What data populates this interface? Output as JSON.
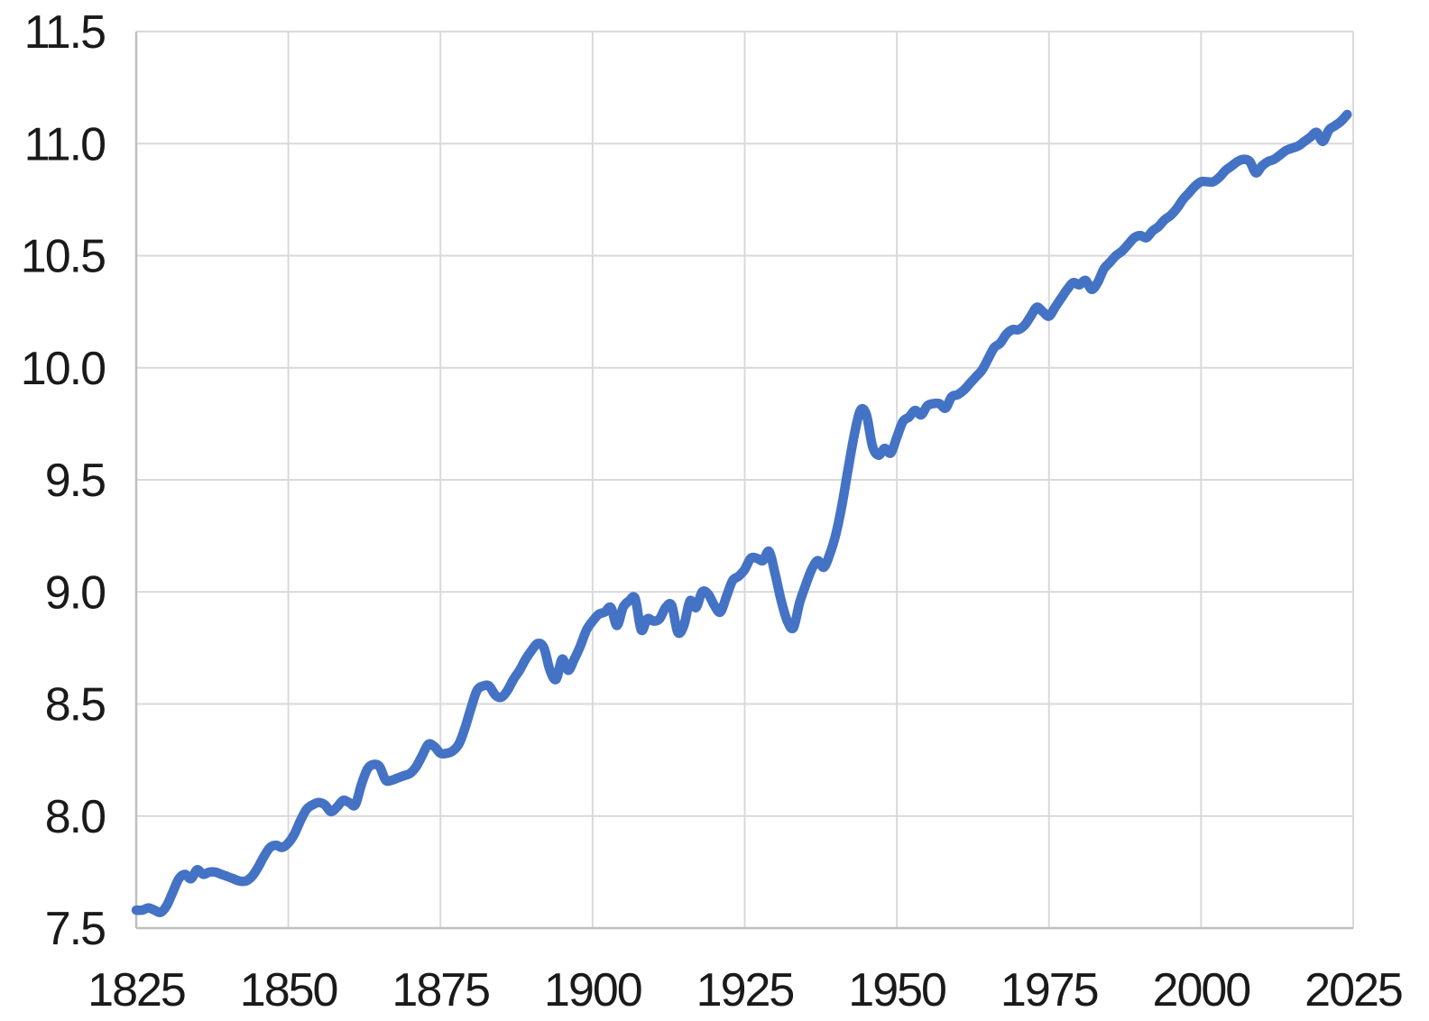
{
  "page": {
    "background_color": "#FFFFFF"
  },
  "style": {
    "grid_color": "#D9D9D9",
    "axis_color": "#BFBFBF",
    "tick_label_color": "#1A1A1A",
    "series_color": "#4472C4",
    "line_width": 10.5
  },
  "chart_data": {
    "type": "line",
    "title": "",
    "xlabel": "",
    "ylabel": "",
    "xlim": [
      1825,
      2025
    ],
    "ylim": [
      7.5,
      11.5
    ],
    "grid": true,
    "legend_position": "none",
    "x_ticks": [
      1825,
      1850,
      1875,
      1900,
      1925,
      1950,
      1975,
      2000,
      2025
    ],
    "x_tick_labels": [
      "1825",
      "1850",
      "1875",
      "1900",
      "1925",
      "1950",
      "1975",
      "2000",
      "2025"
    ],
    "y_ticks": [
      7.5,
      8.0,
      8.5,
      9.0,
      9.5,
      10.0,
      10.5,
      11.0,
      11.5
    ],
    "y_tick_labels": [
      "7.5",
      "8.0",
      "8.5",
      "9.0",
      "9.5",
      "10.0",
      "10.5",
      "11.0",
      "11.5"
    ],
    "series": [
      {
        "color": "#4472C4",
        "smooth": true,
        "x": [
          1825,
          1826,
          1827,
          1828,
          1829,
          1830,
          1831,
          1832,
          1833,
          1834,
          1835,
          1836,
          1837,
          1838,
          1839,
          1840,
          1841,
          1842,
          1843,
          1844,
          1845,
          1846,
          1847,
          1848,
          1849,
          1850,
          1851,
          1852,
          1853,
          1854,
          1855,
          1856,
          1857,
          1858,
          1859,
          1860,
          1861,
          1862,
          1863,
          1864,
          1865,
          1866,
          1867,
          1868,
          1869,
          1870,
          1871,
          1872,
          1873,
          1874,
          1875,
          1876,
          1877,
          1878,
          1879,
          1880,
          1881,
          1882,
          1883,
          1884,
          1885,
          1886,
          1887,
          1888,
          1889,
          1890,
          1891,
          1892,
          1893,
          1894,
          1895,
          1896,
          1897,
          1898,
          1899,
          1900,
          1901,
          1902,
          1903,
          1904,
          1905,
          1906,
          1907,
          1908,
          1909,
          1910,
          1911,
          1912,
          1913,
          1914,
          1915,
          1916,
          1917,
          1918,
          1919,
          1920,
          1921,
          1922,
          1923,
          1924,
          1925,
          1926,
          1927,
          1928,
          1929,
          1930,
          1931,
          1932,
          1933,
          1934,
          1935,
          1936,
          1937,
          1938,
          1939,
          1940,
          1941,
          1942,
          1943,
          1944,
          1945,
          1946,
          1947,
          1948,
          1949,
          1950,
          1951,
          1952,
          1953,
          1954,
          1955,
          1956,
          1957,
          1958,
          1959,
          1960,
          1961,
          1962,
          1963,
          1964,
          1965,
          1966,
          1967,
          1968,
          1969,
          1970,
          1971,
          1972,
          1973,
          1974,
          1975,
          1976,
          1977,
          1978,
          1979,
          1980,
          1981,
          1982,
          1983,
          1984,
          1985,
          1986,
          1987,
          1988,
          1989,
          1990,
          1991,
          1992,
          1993,
          1994,
          1995,
          1996,
          1997,
          1998,
          1999,
          2000,
          2001,
          2002,
          2003,
          2004,
          2005,
          2006,
          2007,
          2008,
          2009,
          2010,
          2011,
          2012,
          2013,
          2014,
          2015,
          2016,
          2017,
          2018,
          2019,
          2020,
          2021,
          2022,
          2023,
          2024
        ],
        "values": [
          7.58,
          7.58,
          7.59,
          7.58,
          7.57,
          7.6,
          7.66,
          7.72,
          7.74,
          7.72,
          7.76,
          7.74,
          7.75,
          7.75,
          7.74,
          7.73,
          7.72,
          7.71,
          7.71,
          7.73,
          7.77,
          7.82,
          7.86,
          7.87,
          7.86,
          7.88,
          7.92,
          7.98,
          8.03,
          8.05,
          8.06,
          8.05,
          8.02,
          8.04,
          8.07,
          8.06,
          8.05,
          8.14,
          8.21,
          8.23,
          8.22,
          8.16,
          8.16,
          8.17,
          8.18,
          8.19,
          8.22,
          8.27,
          8.32,
          8.31,
          8.28,
          8.28,
          8.29,
          8.32,
          8.39,
          8.48,
          8.56,
          8.58,
          8.58,
          8.54,
          8.53,
          8.56,
          8.61,
          8.65,
          8.7,
          8.74,
          8.77,
          8.75,
          8.65,
          8.61,
          8.7,
          8.65,
          8.7,
          8.76,
          8.83,
          8.87,
          8.9,
          8.91,
          8.93,
          8.85,
          8.93,
          8.96,
          8.97,
          8.83,
          8.88,
          8.87,
          8.88,
          8.93,
          8.94,
          8.82,
          8.85,
          8.96,
          8.93,
          9.0,
          8.99,
          8.94,
          8.91,
          8.98,
          9.05,
          9.07,
          9.1,
          9.15,
          9.15,
          9.14,
          9.18,
          9.08,
          8.96,
          8.87,
          8.84,
          8.95,
          9.03,
          9.1,
          9.14,
          9.11,
          9.17,
          9.26,
          9.39,
          9.55,
          9.7,
          9.81,
          9.79,
          9.65,
          9.61,
          9.64,
          9.62,
          9.69,
          9.76,
          9.78,
          9.81,
          9.79,
          9.83,
          9.84,
          9.84,
          9.82,
          9.87,
          9.88,
          9.9,
          9.93,
          9.96,
          9.99,
          10.04,
          10.09,
          10.11,
          10.15,
          10.17,
          10.17,
          10.19,
          10.23,
          10.27,
          10.25,
          10.23,
          10.27,
          10.31,
          10.35,
          10.38,
          10.37,
          10.39,
          10.35,
          10.38,
          10.44,
          10.47,
          10.5,
          10.52,
          10.55,
          10.58,
          10.59,
          10.58,
          10.61,
          10.63,
          10.66,
          10.68,
          10.71,
          10.75,
          10.78,
          10.81,
          10.83,
          10.83,
          10.83,
          10.85,
          10.88,
          10.9,
          10.92,
          10.93,
          10.92,
          10.87,
          10.9,
          10.92,
          10.93,
          10.95,
          10.97,
          10.98,
          10.99,
          11.01,
          11.03,
          11.05,
          11.01,
          11.06,
          11.08,
          11.1,
          11.13
        ]
      }
    ]
  }
}
